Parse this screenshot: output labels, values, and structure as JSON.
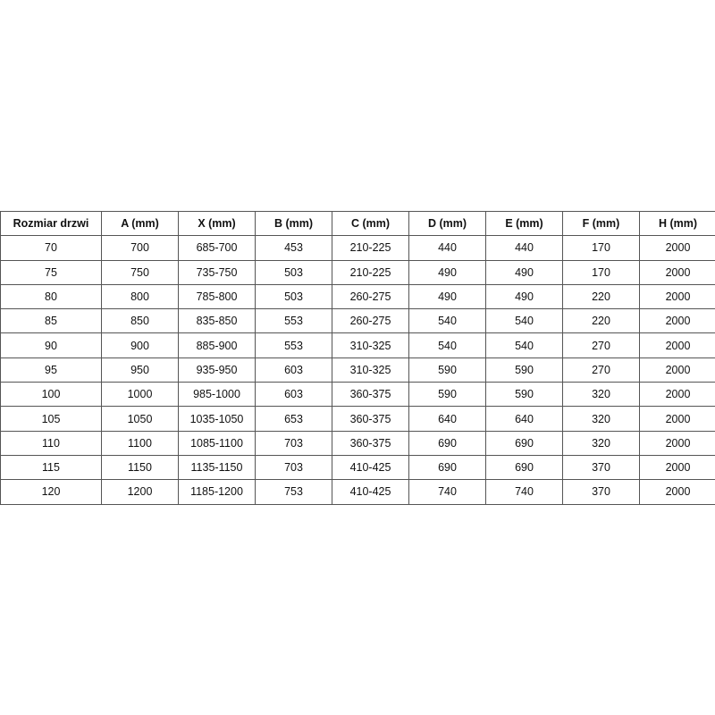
{
  "table": {
    "headers": [
      "Rozmiar drzwi",
      "A (mm)",
      "X (mm)",
      "B (mm)",
      "C (mm)",
      "D (mm)",
      "E (mm)",
      "F (mm)",
      "H (mm)"
    ],
    "rows": [
      [
        "70",
        "700",
        "685-700",
        "453",
        "210-225",
        "440",
        "440",
        "170",
        "2000"
      ],
      [
        "75",
        "750",
        "735-750",
        "503",
        "210-225",
        "490",
        "490",
        "170",
        "2000"
      ],
      [
        "80",
        "800",
        "785-800",
        "503",
        "260-275",
        "490",
        "490",
        "220",
        "2000"
      ],
      [
        "85",
        "850",
        "835-850",
        "553",
        "260-275",
        "540",
        "540",
        "220",
        "2000"
      ],
      [
        "90",
        "900",
        "885-900",
        "553",
        "310-325",
        "540",
        "540",
        "270",
        "2000"
      ],
      [
        "95",
        "950",
        "935-950",
        "603",
        "310-325",
        "590",
        "590",
        "270",
        "2000"
      ],
      [
        "100",
        "1000",
        "985-1000",
        "603",
        "360-375",
        "590",
        "590",
        "320",
        "2000"
      ],
      [
        "105",
        "1050",
        "1035-1050",
        "653",
        "360-375",
        "640",
        "640",
        "320",
        "2000"
      ],
      [
        "110",
        "1100",
        "1085-1100",
        "703",
        "360-375",
        "690",
        "690",
        "320",
        "2000"
      ],
      [
        "115",
        "1150",
        "1135-1150",
        "703",
        "410-425",
        "690",
        "690",
        "370",
        "2000"
      ],
      [
        "120",
        "1200",
        "1185-1200",
        "753",
        "410-425",
        "740",
        "740",
        "370",
        "2000"
      ]
    ]
  }
}
